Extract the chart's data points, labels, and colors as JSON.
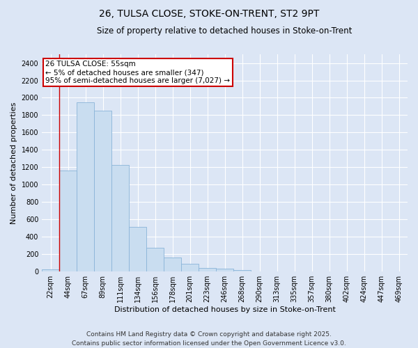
{
  "title": "26, TULSA CLOSE, STOKE-ON-TRENT, ST2 9PT",
  "subtitle": "Size of property relative to detached houses in Stoke-on-Trent",
  "xlabel": "Distribution of detached houses by size in Stoke-on-Trent",
  "ylabel": "Number of detached properties",
  "categories": [
    "22sqm",
    "44sqm",
    "67sqm",
    "89sqm",
    "111sqm",
    "134sqm",
    "156sqm",
    "178sqm",
    "201sqm",
    "223sqm",
    "246sqm",
    "268sqm",
    "290sqm",
    "313sqm",
    "335sqm",
    "357sqm",
    "380sqm",
    "402sqm",
    "424sqm",
    "447sqm",
    "469sqm"
  ],
  "values": [
    25,
    1165,
    1950,
    1850,
    1230,
    515,
    270,
    160,
    90,
    45,
    35,
    15,
    0,
    0,
    0,
    0,
    0,
    0,
    0,
    0,
    0
  ],
  "bar_color": "#c9ddf0",
  "bar_edge_color": "#8ab4d8",
  "vline_x": 0.5,
  "vline_color": "#cc0000",
  "annotation_text": "26 TULSA CLOSE: 55sqm\n← 5% of detached houses are smaller (347)\n95% of semi-detached houses are larger (7,027) →",
  "annotation_box_color": "#ffffff",
  "annotation_box_edge_color": "#cc0000",
  "annotation_fontsize": 7.5,
  "ylim": [
    0,
    2500
  ],
  "yticks": [
    0,
    200,
    400,
    600,
    800,
    1000,
    1200,
    1400,
    1600,
    1800,
    2000,
    2200,
    2400
  ],
  "bg_color": "#dce6f5",
  "grid_color": "#ffffff",
  "footer": "Contains HM Land Registry data © Crown copyright and database right 2025.\nContains public sector information licensed under the Open Government Licence v3.0.",
  "title_fontsize": 10,
  "subtitle_fontsize": 8.5,
  "xlabel_fontsize": 8,
  "ylabel_fontsize": 8,
  "footer_fontsize": 6.5,
  "tick_fontsize": 7
}
